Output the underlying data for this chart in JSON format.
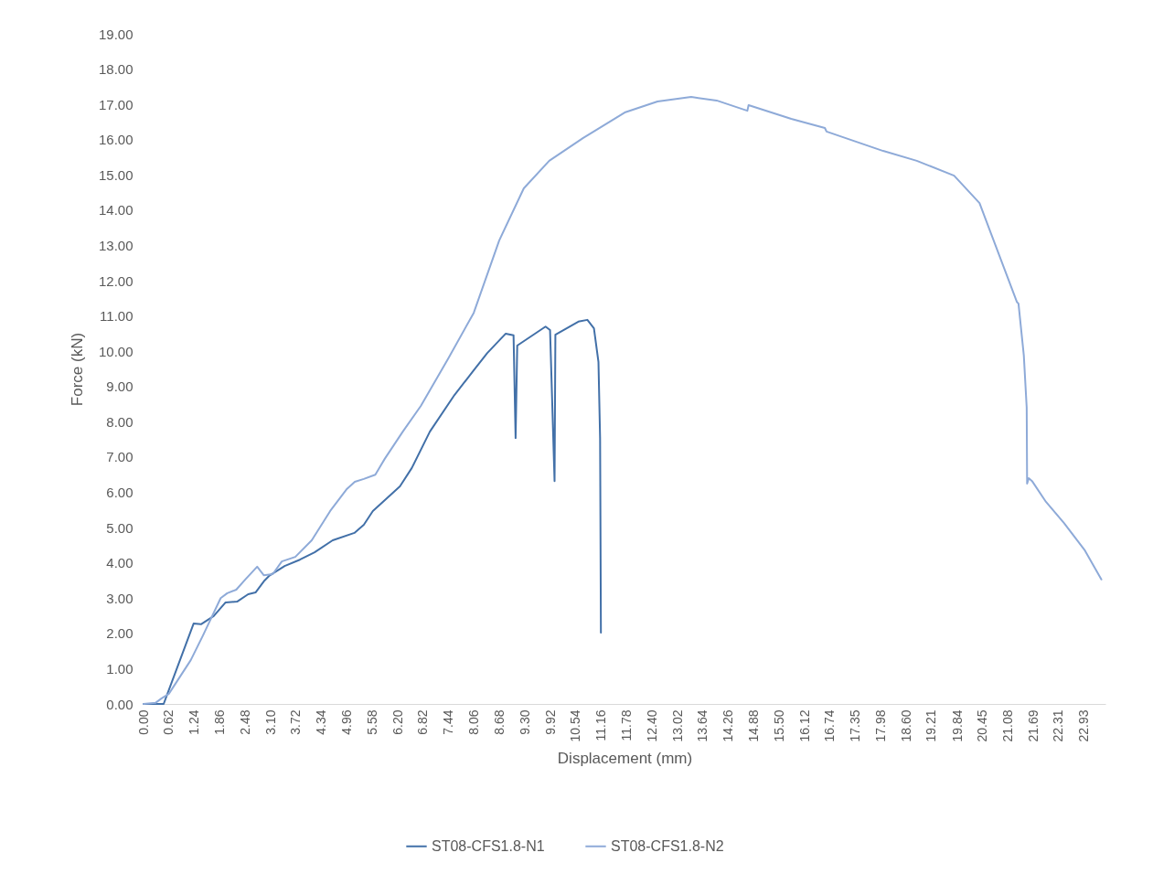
{
  "chart_data": {
    "type": "line",
    "xlabel": "Displacement (mm)",
    "ylabel": "Force (kN)",
    "grid": false,
    "legend": "bottom",
    "marker": "none",
    "line_style": "solid",
    "xlim": [
      0,
      23.45
    ],
    "xticks": [
      {
        "value": 0,
        "label": "0.00"
      },
      {
        "value": 0.62,
        "label": "0.62"
      },
      {
        "value": 1.24,
        "label": "1.24"
      },
      {
        "value": 1.86,
        "label": "1.86"
      },
      {
        "value": 2.48,
        "label": "2.48"
      },
      {
        "value": 3.1,
        "label": "3.10"
      },
      {
        "value": 3.72,
        "label": "3.72"
      },
      {
        "value": 4.34,
        "label": "4.34"
      },
      {
        "value": 4.96,
        "label": "4.96"
      },
      {
        "value": 5.58,
        "label": "5.58"
      },
      {
        "value": 6.2,
        "label": "6.20"
      },
      {
        "value": 6.82,
        "label": "6.82"
      },
      {
        "value": 7.44,
        "label": "7.44"
      },
      {
        "value": 8.06,
        "label": "8.06"
      },
      {
        "value": 8.68,
        "label": "8.68"
      },
      {
        "value": 9.3,
        "label": "9.30"
      },
      {
        "value": 9.92,
        "label": "9.92"
      },
      {
        "value": 10.54,
        "label": "10.54"
      },
      {
        "value": 11.16,
        "label": "11.16"
      },
      {
        "value": 11.78,
        "label": "11.78"
      },
      {
        "value": 12.4,
        "label": "12.40"
      },
      {
        "value": 13.02,
        "label": "13.02"
      },
      {
        "value": 13.64,
        "label": "13.64"
      },
      {
        "value": 14.26,
        "label": "14.26"
      },
      {
        "value": 14.88,
        "label": "14.88"
      },
      {
        "value": 15.5,
        "label": "15.50"
      },
      {
        "value": 16.12,
        "label": "16.12"
      },
      {
        "value": 16.74,
        "label": "16.74"
      },
      {
        "value": 17.35,
        "label": "17.35"
      },
      {
        "value": 17.98,
        "label": "17.98"
      },
      {
        "value": 18.6,
        "label": "18.60"
      },
      {
        "value": 19.21,
        "label": "19.21"
      },
      {
        "value": 19.84,
        "label": "19.84"
      },
      {
        "value": 20.45,
        "label": "20.45"
      },
      {
        "value": 21.08,
        "label": "21.08"
      },
      {
        "value": 21.69,
        "label": "21.69"
      },
      {
        "value": 22.31,
        "label": "22.31"
      },
      {
        "value": 22.93,
        "label": "22.93"
      }
    ],
    "ylim": [
      0,
      19
    ],
    "yticks": [
      {
        "value": 0,
        "label": "0.00"
      },
      {
        "value": 1,
        "label": "1.00"
      },
      {
        "value": 2,
        "label": "2.00"
      },
      {
        "value": 3,
        "label": "3.00"
      },
      {
        "value": 4,
        "label": "4.00"
      },
      {
        "value": 5,
        "label": "5.00"
      },
      {
        "value": 6,
        "label": "6.00"
      },
      {
        "value": 7,
        "label": "7.00"
      },
      {
        "value": 8,
        "label": "8.00"
      },
      {
        "value": 9,
        "label": "9.00"
      },
      {
        "value": 10,
        "label": "10.00"
      },
      {
        "value": 11,
        "label": "11.00"
      },
      {
        "value": 12,
        "label": "12.00"
      },
      {
        "value": 13,
        "label": "13.00"
      },
      {
        "value": 14,
        "label": "14.00"
      },
      {
        "value": 15,
        "label": "15.00"
      },
      {
        "value": 16,
        "label": "16.00"
      },
      {
        "value": 17,
        "label": "17.00"
      },
      {
        "value": 18,
        "label": "18.00"
      },
      {
        "value": 19,
        "label": "19.00"
      }
    ],
    "series": [
      {
        "name": "ST08-CFS1.8-N1",
        "color": "#4270a8",
        "x": [
          0,
          0.49,
          1.22,
          1.4,
          1.71,
          2.0,
          2.28,
          2.55,
          2.73,
          2.95,
          3.06,
          3.44,
          3.81,
          4.17,
          4.61,
          5.14,
          5.37,
          5.59,
          6.25,
          6.54,
          6.98,
          7.58,
          8.03,
          8.38,
          8.83,
          9.02,
          9.07,
          9.11,
          9.8,
          9.91,
          10.02,
          10.04,
          10.6,
          10.82,
          10.98,
          11.09,
          11.13,
          11.15
        ],
        "values": [
          0,
          0,
          2.28,
          2.26,
          2.49,
          2.88,
          2.9,
          3.11,
          3.16,
          3.5,
          3.63,
          3.91,
          4.09,
          4.3,
          4.64,
          4.85,
          5.08,
          5.47,
          6.17,
          6.69,
          7.72,
          8.76,
          9.43,
          9.95,
          10.5,
          10.45,
          7.54,
          10.16,
          10.7,
          10.6,
          6.32,
          10.47,
          10.84,
          10.89,
          10.65,
          9.7,
          7.54,
          2.02
        ]
      },
      {
        "name": "ST08-CFS1.8-N2",
        "color": "#8eaad8",
        "x": [
          0,
          0.29,
          0.44,
          0.62,
          0.73,
          1.15,
          1.44,
          1.88,
          2.04,
          2.26,
          2.48,
          2.77,
          2.93,
          3.15,
          3.37,
          3.7,
          4.1,
          4.55,
          4.96,
          5.15,
          5.37,
          5.65,
          5.88,
          6.32,
          6.76,
          7.43,
          8.05,
          8.67,
          9.27,
          9.89,
          10.71,
          11.73,
          12.53,
          13.35,
          13.97,
          14.72,
          14.75,
          15.79,
          16.61,
          16.65,
          18.03,
          18.85,
          19.76,
          20.38,
          21.29,
          21.33,
          21.46,
          21.53,
          21.54,
          21.58,
          21.66,
          22.0,
          22.44,
          22.95,
          23.35
        ],
        "values": [
          0,
          0.03,
          0.16,
          0.29,
          0.49,
          1.24,
          1.92,
          3.0,
          3.14,
          3.24,
          3.53,
          3.89,
          3.65,
          3.68,
          4.04,
          4.17,
          4.64,
          5.47,
          6.1,
          6.3,
          6.38,
          6.5,
          6.95,
          7.72,
          8.45,
          9.8,
          11.09,
          13.14,
          14.62,
          15.4,
          16.04,
          16.77,
          17.08,
          17.21,
          17.11,
          16.82,
          16.98,
          16.59,
          16.33,
          16.23,
          15.68,
          15.4,
          14.98,
          14.2,
          11.4,
          11.35,
          9.88,
          8.4,
          6.25,
          6.4,
          6.32,
          5.73,
          5.13,
          4.35,
          3.53
        ]
      }
    ]
  }
}
